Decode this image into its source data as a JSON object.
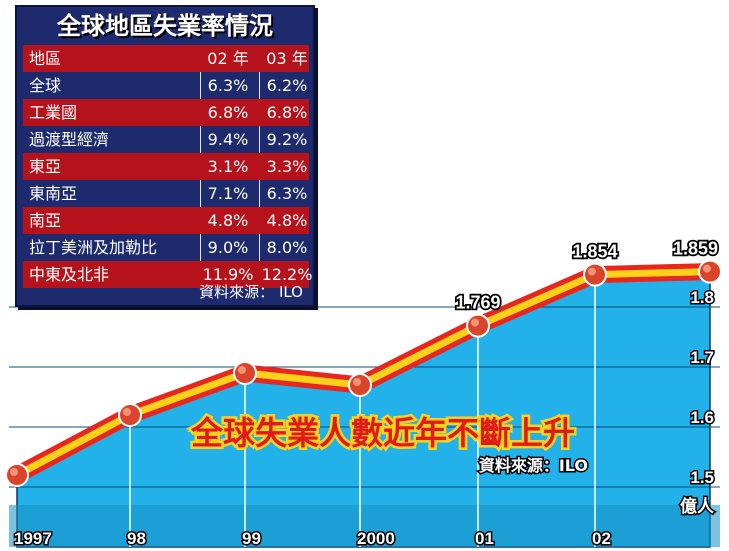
{
  "table": {
    "title": "全球地區失業率情況",
    "headers": [
      "地區",
      "02 年",
      "03 年"
    ],
    "rows": [
      [
        "全球",
        "6.3%",
        "6.2%"
      ],
      [
        "工業國",
        "6.8%",
        "6.8%"
      ],
      [
        "過渡型經濟",
        "9.4%",
        "9.2%"
      ],
      [
        "東亞",
        "3.1%",
        "3.3%"
      ],
      [
        "東南亞",
        "7.1%",
        "6.3%"
      ],
      [
        "南亞",
        "4.8%",
        "4.8%"
      ],
      [
        "拉丁美洲及加勒比",
        "9.0%",
        "8.0%"
      ],
      [
        "中東及北非",
        "11.9%",
        "12.2%"
      ]
    ],
    "source": "資料來源： ILO"
  },
  "chart_data": {
    "type": "area",
    "title": "全球失業人數近年不斷上升",
    "source": "資料來源：ILO",
    "x": [
      "1997",
      "98",
      "99",
      "2000",
      "01",
      "02",
      "03"
    ],
    "x_tick_labels": [
      "1997",
      "98",
      "99",
      "2000",
      "01",
      "02"
    ],
    "values": [
      1.52,
      1.62,
      1.69,
      1.67,
      1.769,
      1.854,
      1.859
    ],
    "data_labels": [
      {
        "index": 4,
        "text": "1.769"
      },
      {
        "index": 5,
        "text": "1.854"
      },
      {
        "index": 6,
        "text": "1.859"
      }
    ],
    "y_ticks": [
      "1.5",
      "1.6",
      "1.7",
      "1.8"
    ],
    "ylabel": "億人",
    "ylim": [
      1.4,
      1.9
    ],
    "grid": true,
    "colors": {
      "area": "#22b1e8",
      "area_dark": "#1690c4",
      "line_outer": "#e8261e",
      "line_inner": "#ffd21a",
      "marker": "#d9442a",
      "title_fill": "#e01a1a",
      "title_stroke": "#ffd21a"
    }
  }
}
